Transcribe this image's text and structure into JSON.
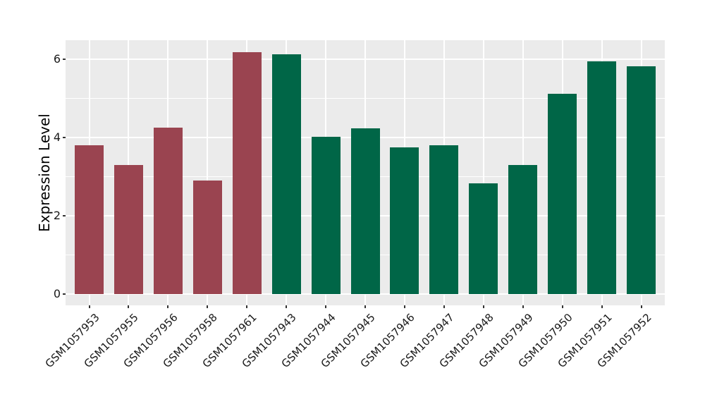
{
  "chart_data": {
    "type": "bar",
    "title": "",
    "xlabel": "",
    "ylabel": "Expression Level",
    "categories": [
      "GSM1057953",
      "GSM1057955",
      "GSM1057956",
      "GSM1057958",
      "GSM1057961",
      "GSM1057943",
      "GSM1057944",
      "GSM1057945",
      "GSM1057946",
      "GSM1057947",
      "GSM1057948",
      "GSM1057949",
      "GSM1057950",
      "GSM1057951",
      "GSM1057952"
    ],
    "values": [
      3.8,
      3.3,
      4.25,
      2.9,
      6.17,
      6.12,
      4.01,
      4.23,
      3.74,
      3.8,
      2.83,
      3.3,
      5.12,
      5.94,
      5.81
    ],
    "bar_colors": [
      "#9A4450",
      "#9A4450",
      "#9A4450",
      "#9A4450",
      "#9A4450",
      "#006647",
      "#006647",
      "#006647",
      "#006647",
      "#006647",
      "#006647",
      "#006647",
      "#006647",
      "#006647",
      "#006647"
    ],
    "group_colors": {
      "left_group": "#9A4450",
      "right_group": "#006647"
    },
    "yticks": [
      0,
      2,
      4,
      6
    ],
    "yticks_minor": [
      1,
      3,
      5
    ],
    "ylim": [
      -0.28,
      6.48
    ],
    "grid": "on",
    "legend": "none",
    "panel_bg": "#EBEBEB",
    "grid_color": "#FFFFFF",
    "tick_color": "#333333",
    "text_color": "#1A1A1A"
  }
}
